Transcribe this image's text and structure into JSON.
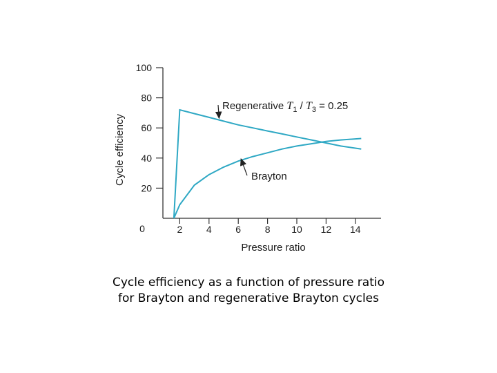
{
  "chart_data": {
    "type": "line",
    "xlabel": "Pressure ratio",
    "ylabel": "Cycle efficiency",
    "xlim": [
      0,
      15
    ],
    "ylim": [
      0,
      100
    ],
    "x_ticks": [
      "2",
      "4",
      "6",
      "8",
      "10",
      "12",
      "14"
    ],
    "y_ticks": [
      "20",
      "40",
      "60",
      "80",
      "100"
    ],
    "origin_label": "0",
    "grid": false,
    "line_color": "#2ea8c4",
    "series": [
      {
        "name": "Regenerative",
        "x": [
          1.6,
          2,
          3,
          4,
          5,
          6,
          7,
          8,
          9,
          10,
          11,
          12,
          13,
          14.4
        ],
        "y": [
          0,
          72,
          69.5,
          67,
          64.5,
          62,
          60,
          58,
          56,
          54,
          52,
          50,
          48,
          46
        ]
      },
      {
        "name": "Brayton",
        "x": [
          1.6,
          2,
          3,
          4,
          5,
          6,
          7,
          8,
          9,
          10,
          11,
          12,
          13,
          14.4
        ],
        "y": [
          0,
          9,
          22,
          29,
          34,
          38,
          41,
          43.5,
          46,
          48,
          49.5,
          51,
          52,
          53
        ]
      }
    ],
    "annotations": [
      {
        "series": "Regenerative",
        "text": "Regenerative",
        "math": [
          "T",
          "1",
          " / ",
          "T",
          "3",
          " = 0.25"
        ],
        "point_x": 4.5,
        "point_y": 65.5
      },
      {
        "series": "Brayton",
        "text": "Brayton",
        "point_x": 6.0,
        "point_y": 38.5
      }
    ]
  },
  "caption": {
    "line1": "Cycle efficiency as a function of pressure ratio",
    "line2": "for Brayton and regenerative Brayton cycles"
  }
}
